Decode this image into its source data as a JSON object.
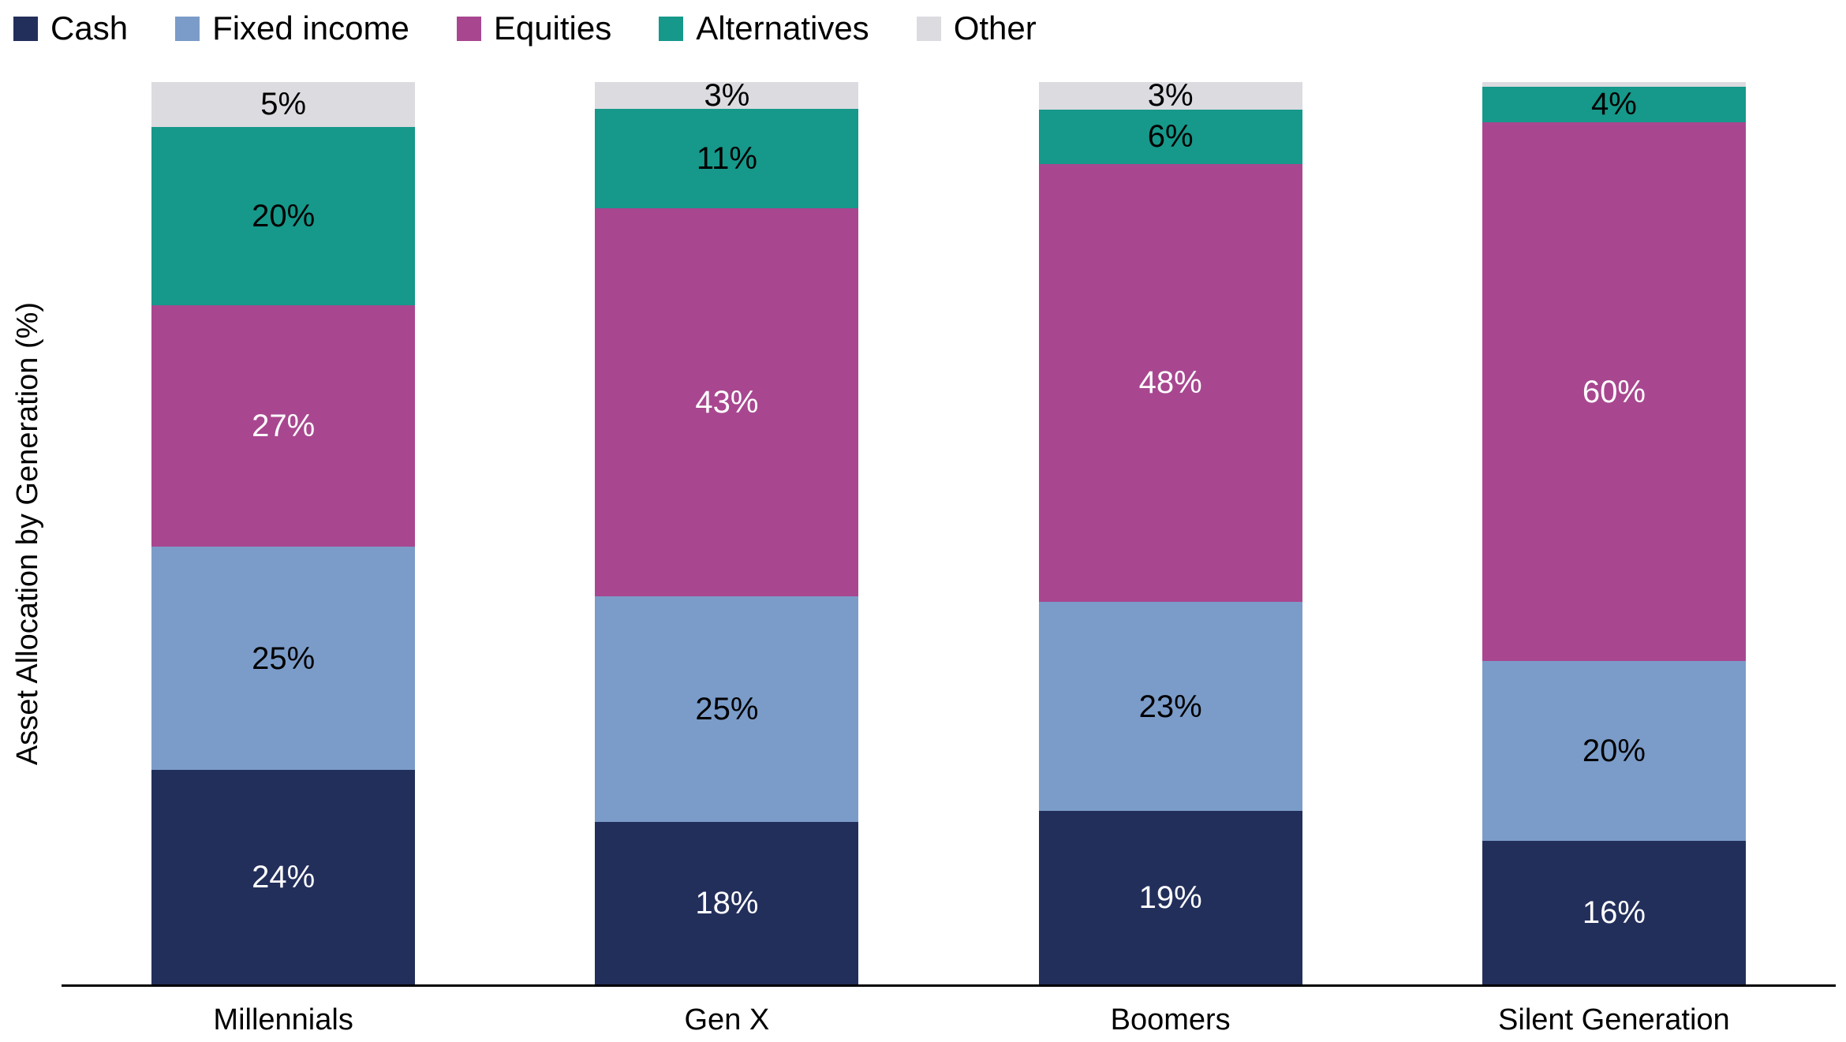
{
  "chart_data": {
    "type": "stacked_bar",
    "title": "",
    "ylabel": "Asset Allocation by Generation (%)",
    "categories": [
      "Millennials",
      "Gen X",
      "Boomers",
      "Silent Generation"
    ],
    "stack_order": "bottom-to-top",
    "legend_position": "top-left",
    "axis_color": "#000000",
    "background_color": "#ffffff",
    "series": [
      {
        "name": "Cash",
        "color": "#232f5b",
        "label_text_color": "#ffffff",
        "values": [
          24,
          18,
          19,
          16
        ],
        "labels": [
          "24%",
          "18%",
          "19%",
          "16%"
        ]
      },
      {
        "name": "Fixed income",
        "color": "#7b9cc9",
        "label_text_color": "#000000",
        "values": [
          25,
          25,
          23,
          20
        ],
        "labels": [
          "25%",
          "25%",
          "23%",
          "20%"
        ]
      },
      {
        "name": "Equities",
        "color": "#a84790",
        "label_text_color": "#ffffff",
        "values": [
          27,
          43,
          48,
          60
        ],
        "labels": [
          "27%",
          "43%",
          "48%",
          "60%"
        ]
      },
      {
        "name": "Alternatives",
        "color": "#16988a",
        "label_text_color": "#000000",
        "values": [
          20,
          11,
          6,
          4
        ],
        "labels": [
          "20%",
          "11%",
          "6%",
          "4%"
        ]
      },
      {
        "name": "Other",
        "color": "#dcdbe0",
        "label_text_color": "#000000",
        "values": [
          5,
          3,
          3,
          0.5
        ],
        "labels": [
          "5%",
          "3%",
          "3%",
          ""
        ]
      }
    ]
  }
}
